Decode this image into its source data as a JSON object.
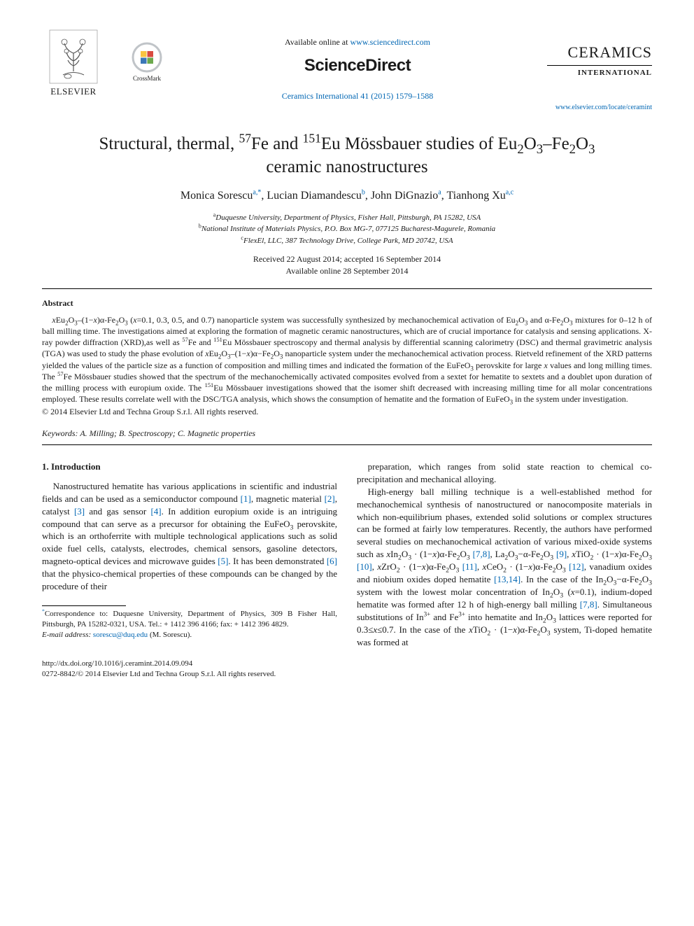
{
  "header": {
    "elsevier_name": "ELSEVIER",
    "crossmark_label": "CrossMark",
    "available_prefix": "Available online at ",
    "available_link": "www.sciencedirect.com",
    "sciencedirect_logo": "ScienceDirect",
    "journal_ref_text": "Ceramics International 41 (2015) 1579–1588",
    "journal_title": "CERAMICS",
    "journal_sub": "INTERNATIONAL",
    "journal_link": "www.elsevier.com/locate/ceramint"
  },
  "title": {
    "pre": "Structural, thermal, ",
    "iso1_sup": "57",
    "iso1_el": "Fe and ",
    "iso2_sup": "151",
    "iso2_el": "Eu Mössbauer studies of Eu",
    "f_sub1": "2",
    "f_mid1": "O",
    "f_sub2": "3",
    "dash": "–Fe",
    "f_sub3": "2",
    "f_mid2": "O",
    "f_sub4": "3",
    "line2": "ceramic nanostructures"
  },
  "authors": {
    "a1_name": "Monica Sorescu",
    "a1_aff": "a,",
    "a1_corr": "*",
    "a2_name": "Lucian Diamandescu",
    "a2_aff": "b",
    "a3_name": "John DiGnazio",
    "a3_aff": "a",
    "a4_name": "Tianhong Xu",
    "a4_aff": "a,c"
  },
  "affils": {
    "a": "Duquesne University, Department of Physics, Fisher Hall, Pittsburgh, PA 15282, USA",
    "b": "National Institute of Materials Physics, P.O. Box MG-7, 077125 Bucharest-Magurele, Romania",
    "c": "FlexEl, LLC, 387 Technology Drive, College Park, MD 20742, USA"
  },
  "dates": {
    "received": "Received 22 August 2014; accepted 16 September 2014",
    "online": "Available online 28 September 2014"
  },
  "abstract": {
    "heading": "Abstract",
    "body_html": "<i>x</i>Eu<sub>2</sub>O<sub>3</sub>–(1−<i>x</i>)α-Fe<sub>2</sub>O<sub>3</sub> (<i>x</i>=0.1, 0.3, 0.5, and 0.7) nanoparticle system was successfully synthesized by mechanochemical activation of Eu<sub>2</sub>O<sub>3</sub> and α-Fe<sub>2</sub>O<sub>3</sub> mixtures for 0–12 h of ball milling time. The investigations aimed at exploring the formation of magnetic ceramic nanostructures, which are of crucial importance for catalysis and sensing applications. X-ray powder diffraction (XRD),as well as <sup>57</sup>Fe and <sup>151</sup>Eu Mössbauer spectroscopy and thermal analysis by differential scanning calorimetry (DSC) and thermal gravimetric analysis (TGA) was used to study the phase evolution of <i>x</i>Eu<sub>2</sub>O<sub>3</sub>–(1−<i>x</i>)α−Fe<sub>2</sub>O<sub>3</sub> nanoparticle system under the mechanochemical activation process. Rietveld refinement of the XRD patterns yielded the values of the particle size as a function of composition and milling times and indicated the formation of the EuFeO<sub>3</sub> perovskite for large <i>x</i> values and long milling times. The <sup>57</sup>Fe Mössbauer studies showed that the spectrum of the mechanochemically activated composites evolved from a sextet for hematite to sextets and a doublet upon duration of the milling process with europium oxide. The <sup>151</sup>Eu Mössbauer investigations showed that the isomer shift decreased with increasing milling time for all molar concentrations employed. These results correlate well with the DSC/TGA analysis, which shows the consumption of hematite and the formation of EuFeO<sub>3</sub> in the system under investigation.",
    "copyright": "© 2014 Elsevier Ltd and Techna Group S.r.l. All rights reserved."
  },
  "keywords": {
    "label": "Keywords:",
    "text": " A. Milling; B. Spectroscopy; C. Magnetic properties"
  },
  "intro": {
    "heading": "1. Introduction",
    "col1_p1_html": "Nanostructured hematite has various applications in scientific and industrial fields and can be used as a semiconductor compound <span class=\"ref-link\">[1]</span>, magnetic material <span class=\"ref-link\">[2]</span>, catalyst <span class=\"ref-link\">[3]</span> and gas sensor <span class=\"ref-link\">[4]</span>. In addition europium oxide is an intriguing compound that can serve as a precursor for obtaining the EuFeO<sub>3</sub> perovskite, which is an orthoferrite with multiple technological applications such as solid oxide fuel cells, catalysts, electrodes, chemical sensors, gasoline detectors, magneto-optical devices and microwave guides <span class=\"ref-link\">[5]</span>. It has been demonstrated <span class=\"ref-link\">[6]</span> that the physico-chemical properties of these compounds can be changed by the procedure of their",
    "col2_p1_html": "preparation, which ranges from solid state reaction to chemical co-precipitation and mechanical alloying.",
    "col2_p2_html": "High-energy ball milling technique is a well-established method for mechanochemical synthesis of nanostructured or nanocomposite materials in which non-equilibrium phases, extended solid solutions or complex structures can be formed at fairly low temperatures. Recently, the authors have performed several studies on mechanochemical activation of various mixed-oxide systems such as <i>x</i>In<sub>2</sub>O<sub>3</sub> · (1−<i>x</i>)α-Fe<sub>2</sub>O<sub>3</sub> <span class=\"ref-link\">[7,8]</span>, La<sub>2</sub>O<sub>3</sub>−α-Fe<sub>2</sub>O<sub>3</sub> <span class=\"ref-link\">[9]</span>, <i>x</i>TiO<sub>2</sub> · (1−<i>x</i>)α-Fe<sub>2</sub>O<sub>3</sub> <span class=\"ref-link\">[10]</span>, <i>x</i>ZrO<sub>2</sub> · (1−<i>x</i>)α-Fe<sub>2</sub>O<sub>3</sub> <span class=\"ref-link\">[11]</span>, <i>x</i>CeO<sub>2</sub> · (1−<i>x</i>)α-Fe<sub>2</sub>O<sub>3</sub> <span class=\"ref-link\">[12]</span>, vanadium oxides and niobium oxides doped hematite <span class=\"ref-link\">[13,14]</span>. In the case of the In<sub>2</sub>O<sub>3</sub>−α-Fe<sub>2</sub>O<sub>3</sub> system with the lowest molar concentration of In<sub>2</sub>O<sub>3</sub> (<i>x</i>=0.1), indium-doped hematite was formed after 12 h of high-energy ball milling <span class=\"ref-link\">[7,8]</span>. Simultaneous substitutions of In<sup>3+</sup> and Fe<sup>3+</sup> into hematite and In<sub>2</sub>O<sub>3</sub> lattices were reported for 0.3≤<i>x</i>≤0.7. In the case of the <i>x</i>TiO<sub>2</sub> · (1−<i>x</i>)α-Fe<sub>2</sub>O<sub>3</sub> system, Ti-doped hematite was formed at"
  },
  "footnote": {
    "corr_text": "Correspondence to: Duquesne University, Department of Physics, 309 B Fisher Hall, Pittsburgh, PA 15282-0321, USA. Tel.: + 1412 396 4166; fax: + 1412 396 4829.",
    "email_label": "E-mail address: ",
    "email": "sorescu@duq.edu",
    "email_suffix": " (M. Sorescu)."
  },
  "doi": {
    "url": "http://dx.doi.org/10.1016/j.ceramint.2014.09.094",
    "issn_cp": "0272-8842/© 2014 Elsevier Ltd and Techna Group S.r.l. All rights reserved."
  },
  "colors": {
    "link": "#0066b3",
    "text": "#1a1a1a",
    "crossmark_ring": "#c0c4c8",
    "crossmark_y": "#f9c440",
    "crossmark_r": "#d94b3f",
    "crossmark_b": "#3b77b7",
    "crossmark_g": "#6ca94d"
  }
}
